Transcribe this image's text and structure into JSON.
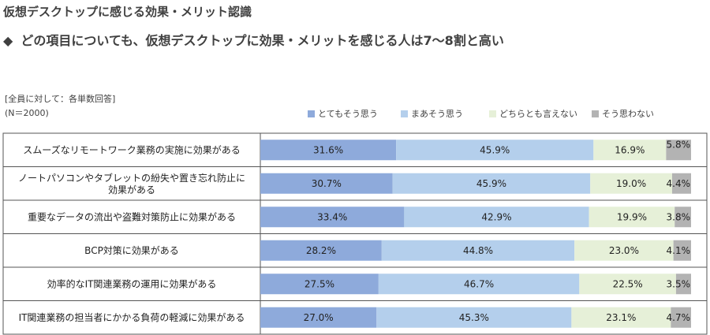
{
  "header": {
    "title": "仮想デスクトップに感じる効果・メリット認識",
    "bullet": "◆",
    "subtitle": "どの項目についても、仮想デスクトップに効果・メリットを感じる人は7～8割と高い"
  },
  "notes": {
    "base": "[全員に対して：各単数回答]",
    "n": "(N＝2000)"
  },
  "chart_data": {
    "type": "bar",
    "orientation": "horizontal-stacked-100",
    "categories": [
      [
        "スムーズなリモートワーク業務の実施に効果がある"
      ],
      [
        "ノートパソコンやタブレットの紛失や置き忘れ防止に",
        "効果がある"
      ],
      [
        "重要なデータの流出や盗難対策防止に効果がある"
      ],
      [
        "BCP対策に効果がある"
      ],
      [
        "効率的なIT関連業務の運用に効果がある"
      ],
      [
        "IT関連業務の担当者にかかる負荷の軽減に効果がある"
      ]
    ],
    "series": [
      {
        "name": "とてもそう思う",
        "color": "#8eaadb",
        "values": [
          31.6,
          30.7,
          33.4,
          28.2,
          27.5,
          27.0
        ]
      },
      {
        "name": "まあそう思う",
        "color": "#b4cfec",
        "values": [
          45.9,
          45.9,
          42.9,
          44.8,
          46.7,
          45.3
        ]
      },
      {
        "name": "どちらとも言えない",
        "color": "#e6f0d8",
        "values": [
          16.9,
          19.0,
          19.9,
          23.0,
          22.5,
          23.1
        ]
      },
      {
        "name": "そう思わない",
        "color": "#b3b3b3",
        "values": [
          5.8,
          4.4,
          3.8,
          4.1,
          3.5,
          4.7
        ]
      }
    ],
    "value_suffix": "%",
    "xlim": [
      0,
      100
    ],
    "legend_position": "top-right"
  }
}
